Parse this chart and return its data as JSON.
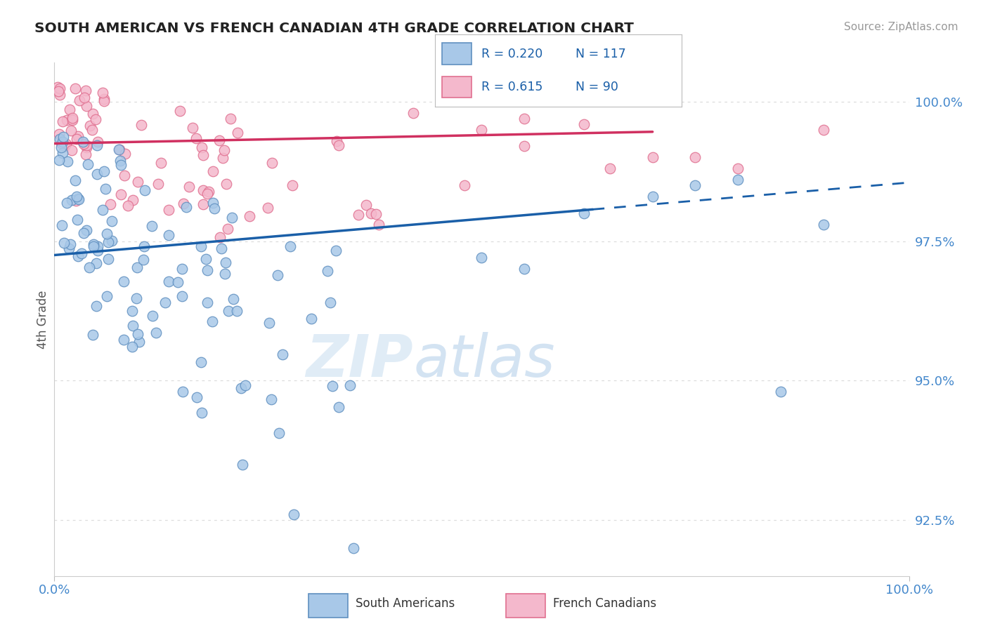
{
  "title": "SOUTH AMERICAN VS FRENCH CANADIAN 4TH GRADE CORRELATION CHART",
  "source": "Source: ZipAtlas.com",
  "ylabel": "4th Grade",
  "ytick_values": [
    100.0,
    97.5,
    95.0,
    92.5
  ],
  "xlim": [
    0.0,
    100.0
  ],
  "ylim": [
    91.5,
    100.7
  ],
  "legend_blue_label": "South Americans",
  "legend_pink_label": "French Canadians",
  "R_blue": 0.22,
  "N_blue": 117,
  "R_pink": 0.615,
  "N_pink": 90,
  "blue_color": "#a8c8e8",
  "pink_color": "#f4b8cc",
  "blue_edge": "#6090c0",
  "pink_edge": "#e07090",
  "trendline_blue": "#1a5fa8",
  "trendline_pink": "#d03060",
  "watermark_color": "#ddeeff",
  "title_color": "#222222",
  "source_color": "#999999",
  "axis_label_color": "#4488cc",
  "ylabel_color": "#555555",
  "grid_color": "#dddddd"
}
